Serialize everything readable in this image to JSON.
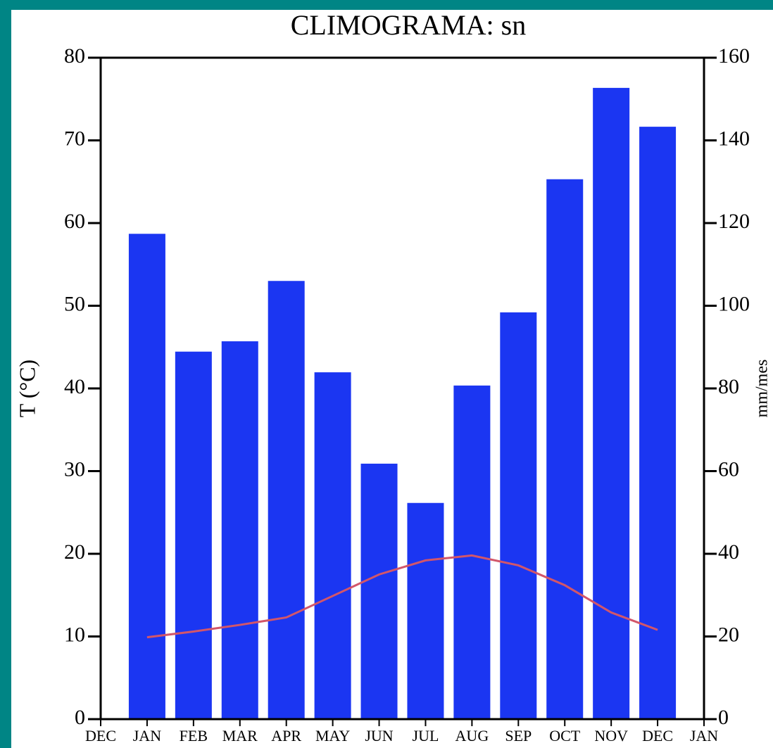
{
  "chart_data": {
    "type": "bar_line",
    "title": "CLIMOGRAMA: sn",
    "ylabel": "T (°C)",
    "y2label": "mm/mes",
    "categories": [
      "DEC",
      "JAN",
      "FEB",
      "MAR",
      "APR",
      "MAY",
      "JUN",
      "JUL",
      "AUG",
      "SEP",
      "OCT",
      "NOV",
      "DEC",
      "JAN"
    ],
    "series": [
      {
        "type": "bar",
        "axis": "y2",
        "color": "#1b36f2",
        "values": [
          null,
          117.4,
          88.9,
          91.4,
          106,
          83.9,
          61.8,
          52.3,
          80.7,
          98.4,
          130.6,
          152.7,
          143.3,
          null
        ]
      },
      {
        "type": "line",
        "axis": "y",
        "color": "#d2566a",
        "values": [
          null,
          9.9,
          10.6,
          11.4,
          12.3,
          14.9,
          17.5,
          19.2,
          19.8,
          18.6,
          16.2,
          12.9,
          10.8,
          null
        ]
      }
    ],
    "ylim": [
      0,
      80
    ],
    "yticks": [
      0,
      10,
      20,
      30,
      40,
      50,
      60,
      70,
      80
    ],
    "y2lim": [
      0,
      160
    ],
    "y2ticks": [
      0,
      20,
      40,
      60,
      80,
      100,
      120,
      140,
      160
    ]
  }
}
